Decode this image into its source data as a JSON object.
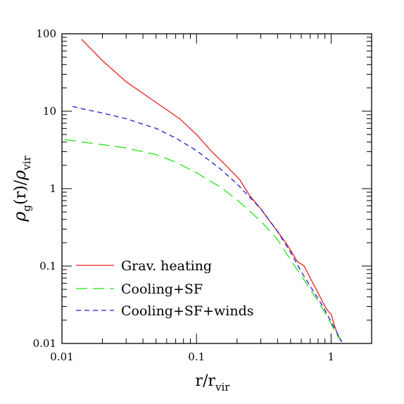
{
  "chart_data": {
    "type": "line",
    "title": "",
    "xlabel": {
      "main": "r/r",
      "sub": "vir"
    },
    "ylabel": {
      "rho": "ρ",
      "g": "g",
      "mid": "(r)/",
      "rho2": "ρ",
      "vir": "vir"
    },
    "xscale": "log",
    "yscale": "log",
    "xlim": [
      0.01,
      2
    ],
    "ylim": [
      0.01,
      100
    ],
    "xticks": [
      {
        "value": 0.01,
        "label": "0.01"
      },
      {
        "value": 0.1,
        "label": "0.1"
      },
      {
        "value": 1,
        "label": "1"
      }
    ],
    "yticks": [
      {
        "value": 0.01,
        "label": "0.01"
      },
      {
        "value": 0.1,
        "label": "0.1"
      },
      {
        "value": 1,
        "label": "1"
      },
      {
        "value": 10,
        "label": "10"
      },
      {
        "value": 100,
        "label": "100"
      }
    ],
    "grid": false,
    "legend_position": "bottom-left",
    "series": [
      {
        "name": "Grav. heating",
        "color": "#e8201e",
        "dash": "solid",
        "x": [
          0.014,
          0.02,
          0.03,
          0.05,
          0.075,
          0.1,
          0.13,
          0.17,
          0.21,
          0.25,
          0.3,
          0.35,
          0.4,
          0.47,
          0.5,
          0.56,
          0.63,
          0.7,
          0.8,
          0.9,
          0.97,
          1.0,
          1.05,
          1.1,
          1.17
        ],
        "y": [
          85,
          45,
          24,
          13,
          8,
          5,
          3,
          1.9,
          1.3,
          0.8,
          0.55,
          0.38,
          0.28,
          0.19,
          0.16,
          0.115,
          0.1,
          0.07,
          0.045,
          0.03,
          0.025,
          0.024,
          0.018,
          0.014,
          0.011
        ]
      },
      {
        "name": "Cooling+SF",
        "color": "#19e619",
        "dash": "long",
        "x": [
          0.0105,
          0.015,
          0.02,
          0.03,
          0.05,
          0.07,
          0.1,
          0.15,
          0.2,
          0.3,
          0.4,
          0.5,
          0.6,
          0.7,
          0.8,
          0.9,
          1.0,
          1.1,
          1.2
        ],
        "y": [
          4.3,
          3.95,
          3.7,
          3.35,
          2.75,
          2.2,
          1.6,
          1.05,
          0.72,
          0.38,
          0.22,
          0.12,
          0.075,
          0.05,
          0.035,
          0.025,
          0.018,
          0.013,
          0.0105
        ]
      },
      {
        "name": "Cooling+SF+winds",
        "color": "#1c1cd4",
        "dash": "short",
        "x": [
          0.012,
          0.015,
          0.02,
          0.03,
          0.05,
          0.07,
          0.1,
          0.15,
          0.2,
          0.3,
          0.4,
          0.5,
          0.6,
          0.7,
          0.8,
          0.9,
          1.0,
          1.1,
          1.2
        ],
        "y": [
          11.5,
          10.5,
          9.5,
          8,
          6,
          4.5,
          3.1,
          1.8,
          1.15,
          0.55,
          0.28,
          0.15,
          0.085,
          0.055,
          0.038,
          0.027,
          0.019,
          0.014,
          0.0105
        ]
      }
    ]
  }
}
